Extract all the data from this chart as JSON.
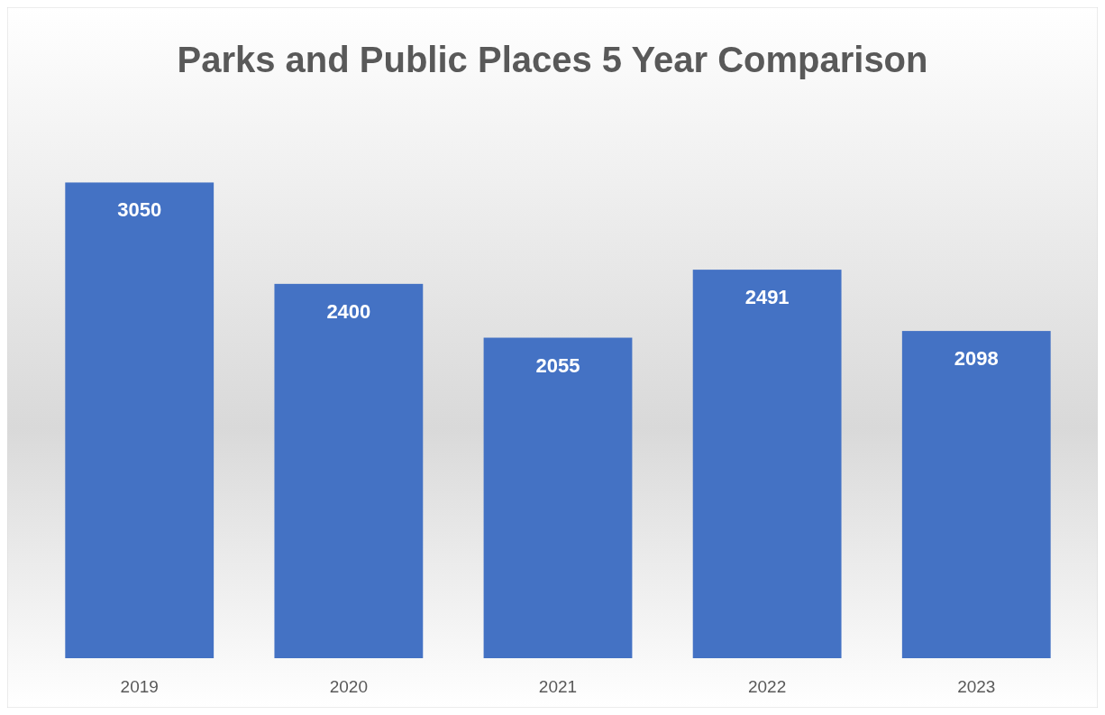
{
  "chart_data": {
    "type": "bar",
    "title": "Parks and Public Places 5 Year Comparison",
    "categories": [
      "2019",
      "2020",
      "2021",
      "2022",
      "2023"
    ],
    "values": [
      3050,
      2400,
      2055,
      2491,
      2098
    ],
    "color": "#4472c4",
    "data_labels": true
  }
}
